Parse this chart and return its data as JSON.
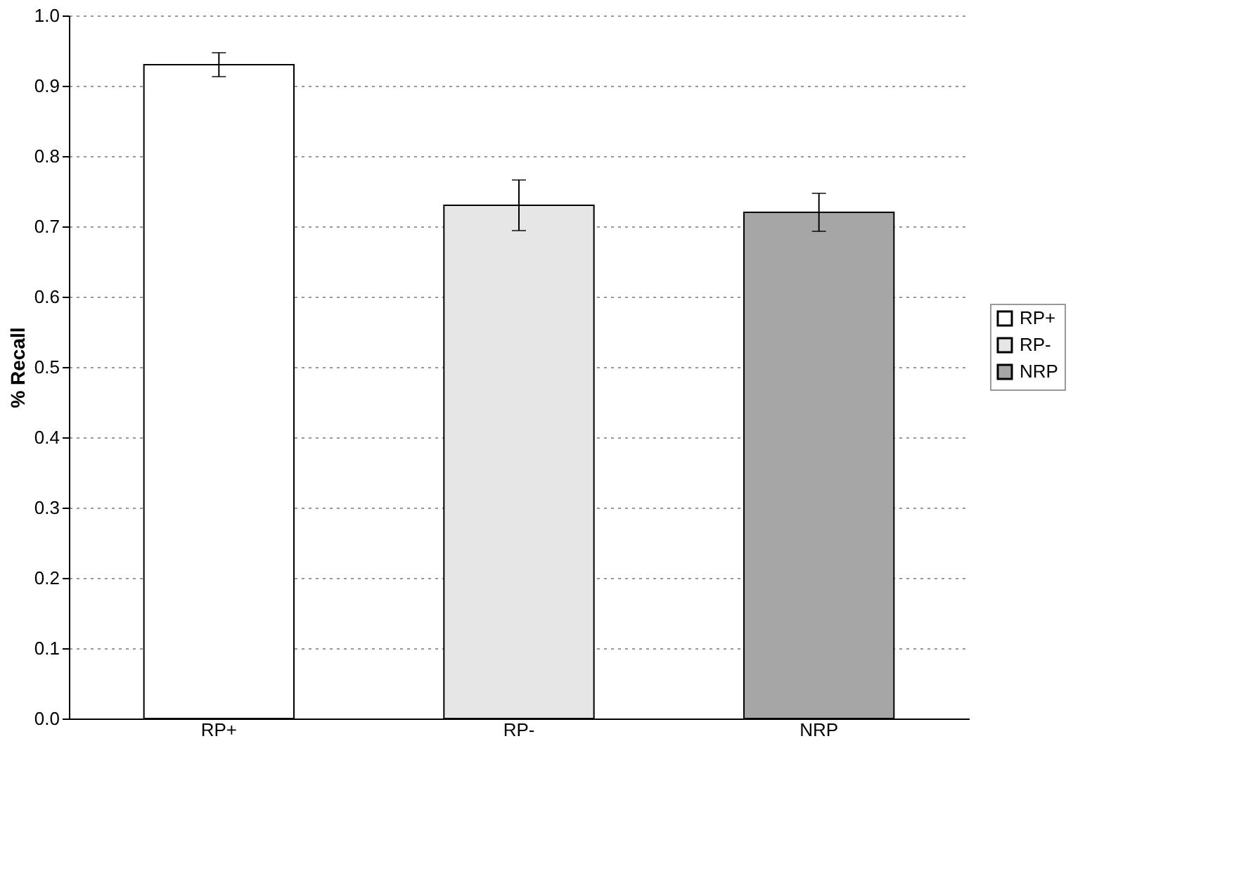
{
  "chart_data": {
    "type": "bar",
    "ylabel": "% Recall",
    "categories": [
      "RP+",
      "RP-",
      "NRP"
    ],
    "series": [
      {
        "name": "RP+",
        "color": "#ffffff",
        "values": [
          0.93,
          null,
          null
        ],
        "errors": [
          0.017,
          null,
          null
        ]
      },
      {
        "name": "RP-",
        "color": "#e6e6e6",
        "values": [
          null,
          0.73,
          null
        ],
        "errors": [
          null,
          0.036,
          null
        ]
      },
      {
        "name": "NRP",
        "color": "#a6a6a6",
        "values": [
          null,
          null,
          0.72
        ],
        "errors": [
          null,
          null,
          0.027
        ]
      }
    ],
    "ylim": [
      0,
      1
    ],
    "yticks": [
      {
        "value": 0,
        "label": "0.0"
      },
      0.1,
      0.2,
      0.3,
      0.4,
      0.5,
      0.6,
      0.7,
      0.8,
      0.9,
      {
        "value": 1,
        "label": "1.0"
      }
    ],
    "grid": "y",
    "legend": "right"
  }
}
